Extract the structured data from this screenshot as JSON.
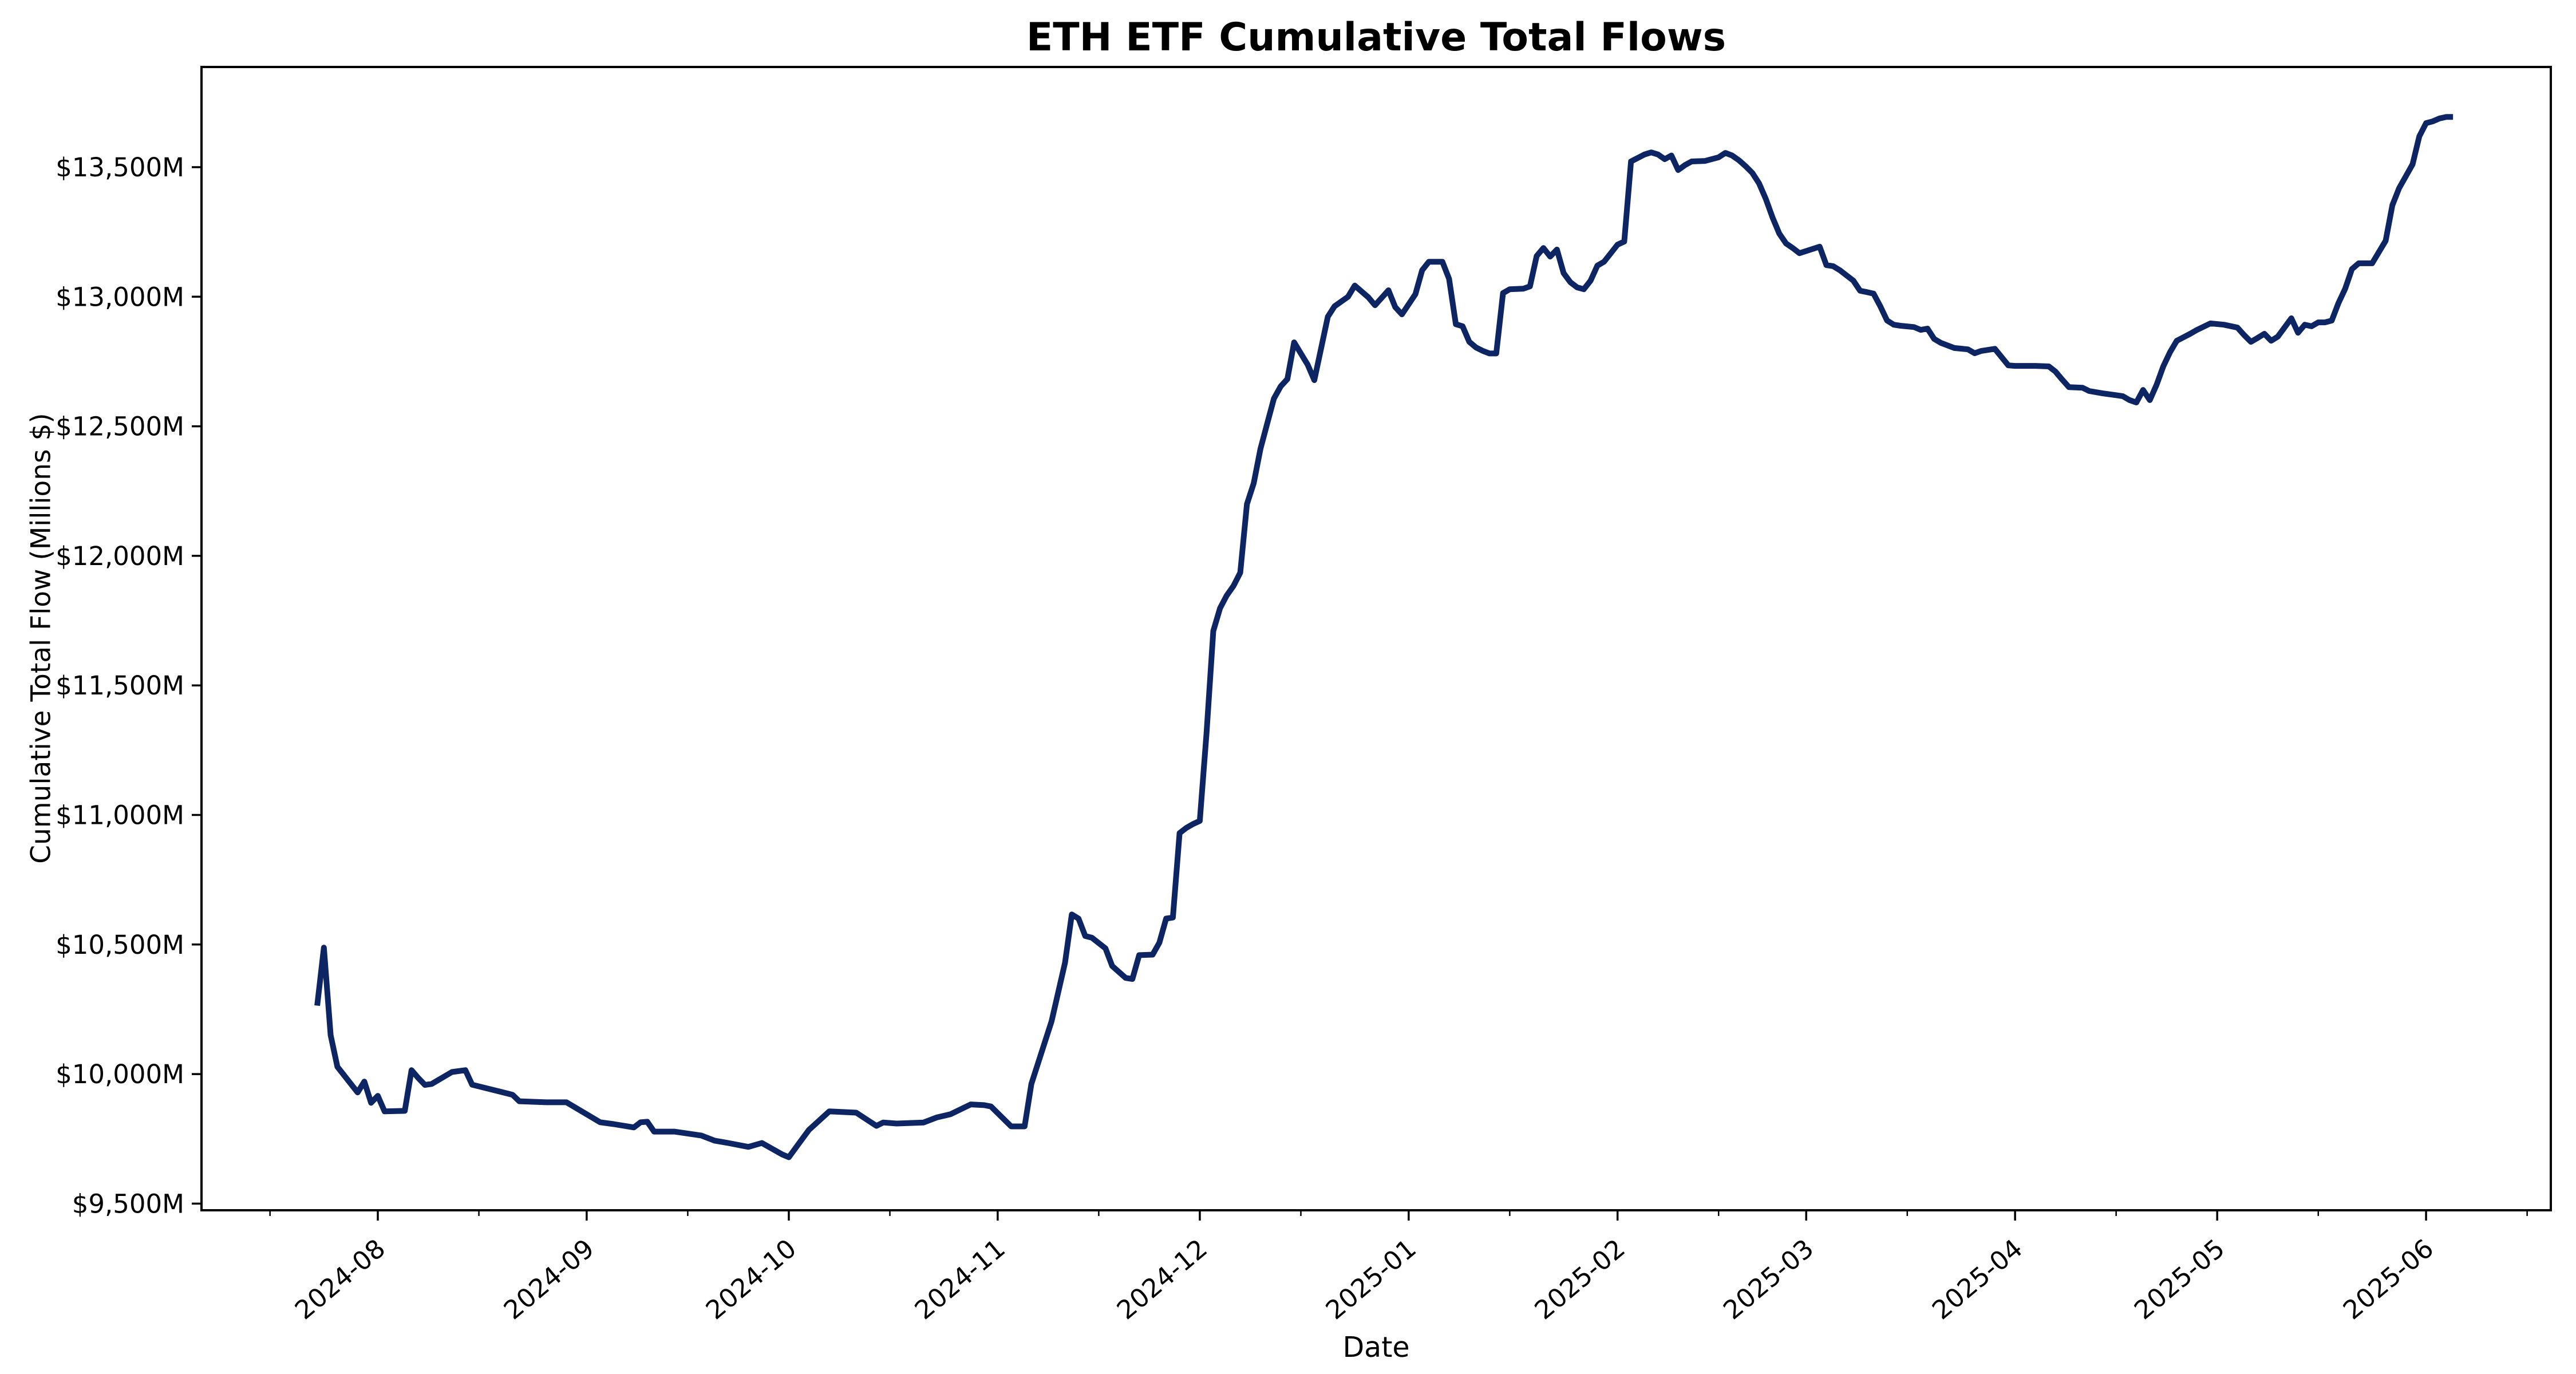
{
  "chart_data": {
    "type": "line",
    "title": "ETH ETF Cumulative Total Flows",
    "xlabel": "Date",
    "ylabel": "Cumulative Total Flow (Millions $)",
    "background_color": "#ffffff",
    "line_color": "#0d2563",
    "axis_color": "#000000",
    "grid": false,
    "legend": "none",
    "ylim": [
      9350,
      13850
    ],
    "y_ticks": [
      9500,
      10000,
      10500,
      11000,
      11500,
      12000,
      12500,
      13000,
      13500
    ],
    "y_tick_format": "$#,###M",
    "y_tick_labels": [
      "$9,500M",
      "$10,000M",
      "$10,500M",
      "$11,000M",
      "$11,500M",
      "$12,000M",
      "$12,500M",
      "$13,000M",
      "$13,500M"
    ],
    "x_ticks": [
      {
        "label": "2024-08",
        "date": "2024-08-01"
      },
      {
        "label": "2024-09",
        "date": "2024-09-01"
      },
      {
        "label": "2024-10",
        "date": "2024-10-01"
      },
      {
        "label": "2024-11",
        "date": "2024-11-01"
      },
      {
        "label": "2024-12",
        "date": "2024-12-01"
      },
      {
        "label": "2025-01",
        "date": "2025-01-01"
      },
      {
        "label": "2025-02",
        "date": "2025-02-01"
      },
      {
        "label": "2025-03",
        "date": "2025-03-01"
      },
      {
        "label": "2025-04",
        "date": "2025-04-01"
      },
      {
        "label": "2025-05",
        "date": "2025-05-01"
      },
      {
        "label": "2025-06",
        "date": "2025-06-01"
      }
    ],
    "x_minor_ticks": [
      "2024-07-16",
      "2024-08-16",
      "2024-09-16",
      "2024-10-16",
      "2024-11-16",
      "2024-12-16",
      "2025-01-16",
      "2025-02-16",
      "2025-03-16",
      "2025-04-16",
      "2025-05-16",
      "2025-06-16"
    ],
    "series": [
      {
        "name": "Cumulative Total Flow",
        "points": [
          [
            "2024-07-23",
            10264
          ],
          [
            "2024-07-24",
            10488
          ],
          [
            "2024-07-25",
            10150
          ],
          [
            "2024-07-26",
            10028
          ],
          [
            "2024-07-29",
            9929
          ],
          [
            "2024-07-30",
            9971
          ],
          [
            "2024-07-31",
            9889
          ],
          [
            "2024-08-01",
            9916
          ],
          [
            "2024-08-02",
            9856
          ],
          [
            "2024-08-05",
            9858
          ],
          [
            "2024-08-06",
            10015
          ],
          [
            "2024-08-07",
            9985
          ],
          [
            "2024-08-08",
            9958
          ],
          [
            "2024-08-09",
            9962
          ],
          [
            "2024-08-12",
            10008
          ],
          [
            "2024-08-14",
            10015
          ],
          [
            "2024-08-15",
            9959
          ],
          [
            "2024-08-19",
            9933
          ],
          [
            "2024-08-21",
            9920
          ],
          [
            "2024-08-22",
            9895
          ],
          [
            "2024-08-26",
            9891
          ],
          [
            "2024-08-29",
            9891
          ],
          [
            "2024-09-03",
            9814
          ],
          [
            "2024-09-05",
            9807
          ],
          [
            "2024-09-08",
            9794
          ],
          [
            "2024-09-09",
            9814
          ],
          [
            "2024-09-10",
            9816
          ],
          [
            "2024-09-11",
            9778
          ],
          [
            "2024-09-14",
            9778
          ],
          [
            "2024-09-18",
            9763
          ],
          [
            "2024-09-20",
            9743
          ],
          [
            "2024-09-22",
            9734
          ],
          [
            "2024-09-25",
            9719
          ],
          [
            "2024-09-27",
            9734
          ],
          [
            "2024-09-30",
            9690
          ],
          [
            "2024-10-01",
            9679
          ],
          [
            "2024-10-03",
            9750
          ],
          [
            "2024-10-04",
            9785
          ],
          [
            "2024-10-07",
            9856
          ],
          [
            "2024-10-11",
            9851
          ],
          [
            "2024-10-14",
            9800
          ],
          [
            "2024-10-15",
            9813
          ],
          [
            "2024-10-17",
            9809
          ],
          [
            "2024-10-21",
            9813
          ],
          [
            "2024-10-23",
            9833
          ],
          [
            "2024-10-25",
            9845
          ],
          [
            "2024-10-28",
            9883
          ],
          [
            "2024-10-30",
            9880
          ],
          [
            "2024-10-31",
            9875
          ],
          [
            "2024-11-03",
            9798
          ],
          [
            "2024-11-05",
            9798
          ],
          [
            "2024-11-06",
            9962
          ],
          [
            "2024-11-09",
            10204
          ],
          [
            "2024-11-11",
            10430
          ],
          [
            "2024-11-12",
            10616
          ],
          [
            "2024-11-13",
            10600
          ],
          [
            "2024-11-14",
            10533
          ],
          [
            "2024-11-15",
            10526
          ],
          [
            "2024-11-17",
            10485
          ],
          [
            "2024-11-18",
            10417
          ],
          [
            "2024-11-20",
            10371
          ],
          [
            "2024-11-21",
            10367
          ],
          [
            "2024-11-22",
            10459
          ],
          [
            "2024-11-24",
            10461
          ],
          [
            "2024-11-25",
            10507
          ],
          [
            "2024-11-26",
            10600
          ],
          [
            "2024-11-27",
            10604
          ],
          [
            "2024-11-28",
            10930
          ],
          [
            "2024-11-29",
            10950
          ],
          [
            "2024-11-30",
            10965
          ],
          [
            "2024-12-01",
            10977
          ],
          [
            "2024-12-02",
            11316
          ],
          [
            "2024-12-03",
            11710
          ],
          [
            "2024-12-04",
            11798
          ],
          [
            "2024-12-05",
            11847
          ],
          [
            "2024-12-06",
            11884
          ],
          [
            "2024-12-07",
            11935
          ],
          [
            "2024-12-08",
            12200
          ],
          [
            "2024-12-09",
            12280
          ],
          [
            "2024-12-10",
            12413
          ],
          [
            "2024-12-11",
            12510
          ],
          [
            "2024-12-12",
            12607
          ],
          [
            "2024-12-13",
            12654
          ],
          [
            "2024-12-14",
            12682
          ],
          [
            "2024-12-15",
            12824
          ],
          [
            "2024-12-17",
            12738
          ],
          [
            "2024-12-18",
            12678
          ],
          [
            "2024-12-20",
            12923
          ],
          [
            "2024-12-21",
            12963
          ],
          [
            "2024-12-23",
            13000
          ],
          [
            "2024-12-24",
            13043
          ],
          [
            "2024-12-26",
            12998
          ],
          [
            "2024-12-27",
            12967
          ],
          [
            "2024-12-29",
            13025
          ],
          [
            "2024-12-30",
            12960
          ],
          [
            "2024-12-31",
            12932
          ],
          [
            "2025-01-02",
            13010
          ],
          [
            "2025-01-03",
            13102
          ],
          [
            "2025-01-04",
            13135
          ],
          [
            "2025-01-06",
            13135
          ],
          [
            "2025-01-07",
            13069
          ],
          [
            "2025-01-08",
            12894
          ],
          [
            "2025-01-09",
            12886
          ],
          [
            "2025-01-10",
            12826
          ],
          [
            "2025-01-11",
            12804
          ],
          [
            "2025-01-12",
            12791
          ],
          [
            "2025-01-13",
            12781
          ],
          [
            "2025-01-14",
            12781
          ],
          [
            "2025-01-15",
            13014
          ],
          [
            "2025-01-16",
            13029
          ],
          [
            "2025-01-18",
            13031
          ],
          [
            "2025-01-19",
            13040
          ],
          [
            "2025-01-20",
            13157
          ],
          [
            "2025-01-21",
            13188
          ],
          [
            "2025-01-22",
            13155
          ],
          [
            "2025-01-23",
            13182
          ],
          [
            "2025-01-24",
            13091
          ],
          [
            "2025-01-25",
            13056
          ],
          [
            "2025-01-26",
            13036
          ],
          [
            "2025-01-27",
            13029
          ],
          [
            "2025-01-28",
            13062
          ],
          [
            "2025-01-29",
            13120
          ],
          [
            "2025-01-30",
            13135
          ],
          [
            "2025-01-31",
            13168
          ],
          [
            "2025-02-01",
            13201
          ],
          [
            "2025-02-02",
            13213
          ],
          [
            "2025-02-03",
            13522
          ],
          [
            "2025-02-05",
            13549
          ],
          [
            "2025-02-06",
            13557
          ],
          [
            "2025-02-07",
            13549
          ],
          [
            "2025-02-08",
            13531
          ],
          [
            "2025-02-09",
            13545
          ],
          [
            "2025-02-10",
            13489
          ],
          [
            "2025-02-11",
            13508
          ],
          [
            "2025-02-12",
            13522
          ],
          [
            "2025-02-14",
            13524
          ],
          [
            "2025-02-16",
            13538
          ],
          [
            "2025-02-17",
            13555
          ],
          [
            "2025-02-18",
            13545
          ],
          [
            "2025-02-19",
            13527
          ],
          [
            "2025-02-20",
            13504
          ],
          [
            "2025-02-21",
            13478
          ],
          [
            "2025-02-22",
            13438
          ],
          [
            "2025-02-23",
            13378
          ],
          [
            "2025-02-24",
            13306
          ],
          [
            "2025-02-25",
            13244
          ],
          [
            "2025-02-26",
            13206
          ],
          [
            "2025-02-27",
            13188
          ],
          [
            "2025-02-28",
            13168
          ],
          [
            "2025-03-03",
            13193
          ],
          [
            "2025-03-04",
            13122
          ],
          [
            "2025-03-05",
            13118
          ],
          [
            "2025-03-06",
            13102
          ],
          [
            "2025-03-07",
            13082
          ],
          [
            "2025-03-08",
            13062
          ],
          [
            "2025-03-09",
            13023
          ],
          [
            "2025-03-10",
            13018
          ],
          [
            "2025-03-11",
            13012
          ],
          [
            "2025-03-12",
            12963
          ],
          [
            "2025-03-13",
            12908
          ],
          [
            "2025-03-14",
            12892
          ],
          [
            "2025-03-15",
            12888
          ],
          [
            "2025-03-17",
            12883
          ],
          [
            "2025-03-18",
            12872
          ],
          [
            "2025-03-19",
            12877
          ],
          [
            "2025-03-20",
            12837
          ],
          [
            "2025-03-21",
            12822
          ],
          [
            "2025-03-23",
            12802
          ],
          [
            "2025-03-25",
            12797
          ],
          [
            "2025-03-26",
            12782
          ],
          [
            "2025-03-27",
            12791
          ],
          [
            "2025-03-29",
            12799
          ],
          [
            "2025-03-31",
            12735
          ],
          [
            "2025-04-01",
            12733
          ],
          [
            "2025-04-04",
            12733
          ],
          [
            "2025-04-06",
            12731
          ],
          [
            "2025-04-07",
            12711
          ],
          [
            "2025-04-08",
            12680
          ],
          [
            "2025-04-09",
            12651
          ],
          [
            "2025-04-11",
            12649
          ],
          [
            "2025-04-12",
            12636
          ],
          [
            "2025-04-14",
            12627
          ],
          [
            "2025-04-16",
            12620
          ],
          [
            "2025-04-17",
            12616
          ],
          [
            "2025-04-18",
            12601
          ],
          [
            "2025-04-19",
            12592
          ],
          [
            "2025-04-20",
            12640
          ],
          [
            "2025-04-21",
            12601
          ],
          [
            "2025-04-22",
            12660
          ],
          [
            "2025-04-23",
            12731
          ],
          [
            "2025-04-24",
            12786
          ],
          [
            "2025-04-25",
            12830
          ],
          [
            "2025-04-27",
            12857
          ],
          [
            "2025-04-28",
            12872
          ],
          [
            "2025-04-30",
            12897
          ],
          [
            "2025-05-02",
            12892
          ],
          [
            "2025-05-04",
            12881
          ],
          [
            "2025-05-05",
            12852
          ],
          [
            "2025-05-06",
            12826
          ],
          [
            "2025-05-07",
            12841
          ],
          [
            "2025-05-08",
            12857
          ],
          [
            "2025-05-09",
            12830
          ],
          [
            "2025-05-10",
            12846
          ],
          [
            "2025-05-12",
            12917
          ],
          [
            "2025-05-13",
            12861
          ],
          [
            "2025-05-14",
            12892
          ],
          [
            "2025-05-15",
            12886
          ],
          [
            "2025-05-16",
            12901
          ],
          [
            "2025-05-17",
            12901
          ],
          [
            "2025-05-18",
            12908
          ],
          [
            "2025-05-19",
            12976
          ],
          [
            "2025-05-20",
            13031
          ],
          [
            "2025-05-21",
            13107
          ],
          [
            "2025-05-22",
            13129
          ],
          [
            "2025-05-24",
            13129
          ],
          [
            "2025-05-26",
            13216
          ],
          [
            "2025-05-27",
            13353
          ],
          [
            "2025-05-28",
            13419
          ],
          [
            "2025-05-29",
            13465
          ],
          [
            "2025-05-30",
            13511
          ],
          [
            "2025-05-31",
            13619
          ],
          [
            "2025-06-01",
            13670
          ],
          [
            "2025-06-02",
            13677
          ],
          [
            "2025-06-03",
            13688
          ],
          [
            "2025-06-04",
            13694
          ],
          [
            "2025-06-05",
            13694
          ]
        ]
      }
    ]
  }
}
